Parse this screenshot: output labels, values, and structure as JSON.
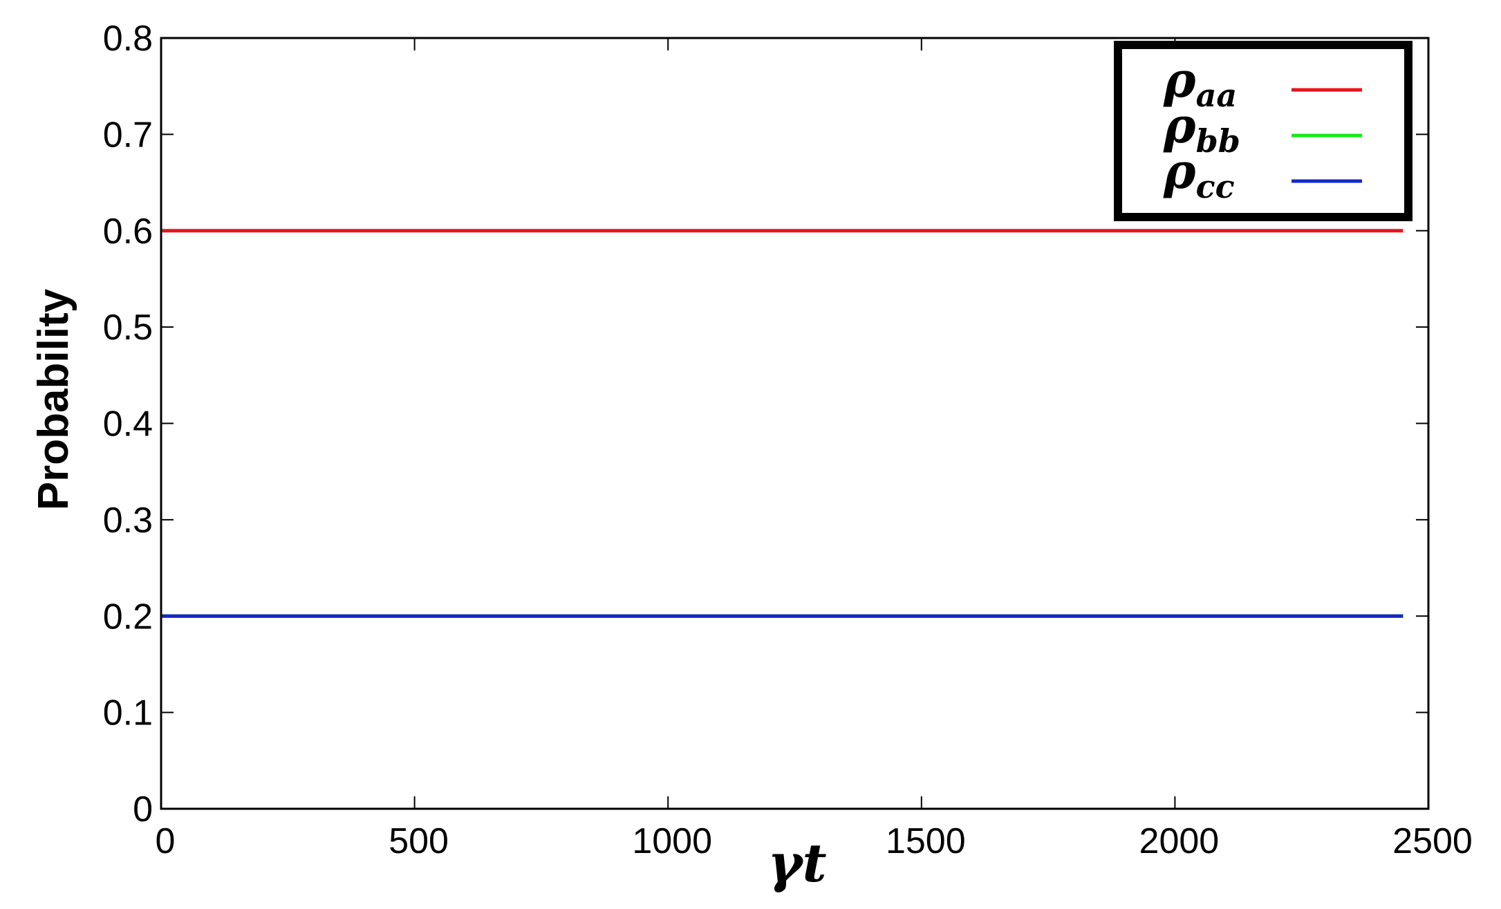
{
  "chart_data": {
    "type": "line",
    "xlabel": "γt",
    "ylabel": "Probability",
    "xlim": [
      0,
      2500
    ],
    "ylim": [
      0,
      0.8
    ],
    "xticks": [
      0,
      500,
      1000,
      1500,
      2000,
      2500
    ],
    "yticks": [
      0,
      0.1,
      0.2,
      0.3,
      0.4,
      0.5,
      0.6,
      0.7,
      0.8
    ],
    "xtick_labels": [
      "0",
      "500",
      "1000",
      "1500",
      "2000",
      "2500"
    ],
    "ytick_labels": [
      "0",
      "0.1",
      "0.2",
      "0.3",
      "0.4",
      "0.5",
      "0.6",
      "0.7",
      "0.8"
    ],
    "grid": false,
    "legend_position": "top-right",
    "series": [
      {
        "name_base": "ρ",
        "name_sub": "aa",
        "color": "#e8141c",
        "x": [
          0,
          2450
        ],
        "y": [
          0.6,
          0.6
        ]
      },
      {
        "name_base": "ρ",
        "name_sub": "bb",
        "color": "#18e818",
        "x": [
          0,
          2450
        ],
        "y": [
          0.2,
          0.2
        ]
      },
      {
        "name_base": "ρ",
        "name_sub": "cc",
        "color": "#1428c8",
        "x": [
          0,
          2450
        ],
        "y": [
          0.2,
          0.2
        ]
      }
    ]
  }
}
